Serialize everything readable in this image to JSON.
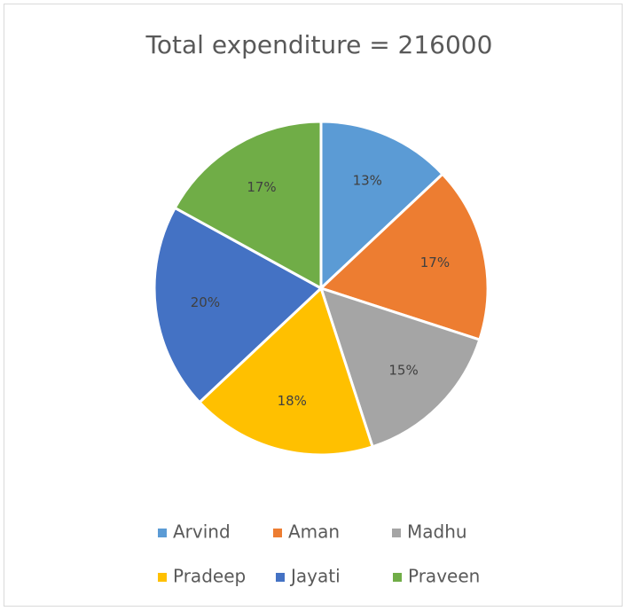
{
  "chart_data": {
    "type": "pie",
    "title": "Total expenditure = 216000",
    "categories": [
      "Arvind",
      "Aman",
      "Madhu",
      "Pradeep",
      "Jayati",
      "Praveen"
    ],
    "values": [
      13,
      17,
      15,
      18,
      20,
      17
    ],
    "value_labels": [
      "13%",
      "17%",
      "15%",
      "18%",
      "20%",
      "17%"
    ],
    "colors": [
      "#5b9bd5",
      "#ed7d31",
      "#a5a5a5",
      "#ffc000",
      "#4472c4",
      "#70ad47"
    ],
    "legend": "bottom"
  }
}
